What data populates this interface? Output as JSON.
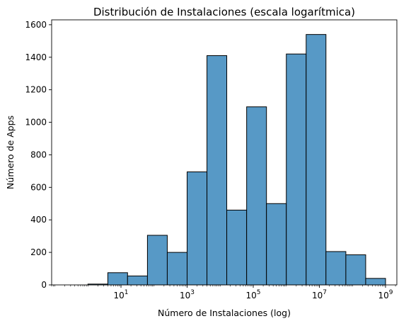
{
  "chart_data": {
    "type": "bar",
    "title": "Distribución de Instalaciones (escala logarítmica)",
    "xlabel": "Número de Instalaciones (log)",
    "ylabel": "Número de Apps",
    "x_scale": "log",
    "x_tick_exponents": [
      1,
      3,
      5,
      7,
      9
    ],
    "x_tick_labels": [
      "10^1",
      "10^3",
      "10^5",
      "10^7",
      "10^9"
    ],
    "xlim": [
      0.08,
      2200000000.0
    ],
    "ylim": [
      0,
      1630
    ],
    "y_ticks": [
      0,
      200,
      400,
      600,
      800,
      1000,
      1200,
      1400,
      1600
    ],
    "grid": false,
    "bar_color": "#5799c6",
    "edge_color": "#000000",
    "bins": [
      {
        "from": 1,
        "to": 4.0,
        "value": 5
      },
      {
        "from": 4.0,
        "to": 15.8,
        "value": 75
      },
      {
        "from": 15.8,
        "to": 63.1,
        "value": 55
      },
      {
        "from": 63.1,
        "to": 251,
        "value": 305
      },
      {
        "from": 251,
        "to": 1000,
        "value": 200
      },
      {
        "from": 1000,
        "to": 3980,
        "value": 695
      },
      {
        "from": 3980,
        "to": 15800,
        "value": 1410
      },
      {
        "from": 15800,
        "to": 63100,
        "value": 460
      },
      {
        "from": 63100,
        "to": 251000,
        "value": 1095
      },
      {
        "from": 251000,
        "to": 1000000,
        "value": 500
      },
      {
        "from": 1000000,
        "to": 3980000,
        "value": 1420
      },
      {
        "from": 3980000,
        "to": 15800000,
        "value": 1540
      },
      {
        "from": 15800000,
        "to": 63100000,
        "value": 205
      },
      {
        "from": 63100000,
        "to": 251000000,
        "value": 185
      },
      {
        "from": 251000000,
        "to": 1000000000,
        "value": 40
      }
    ]
  }
}
